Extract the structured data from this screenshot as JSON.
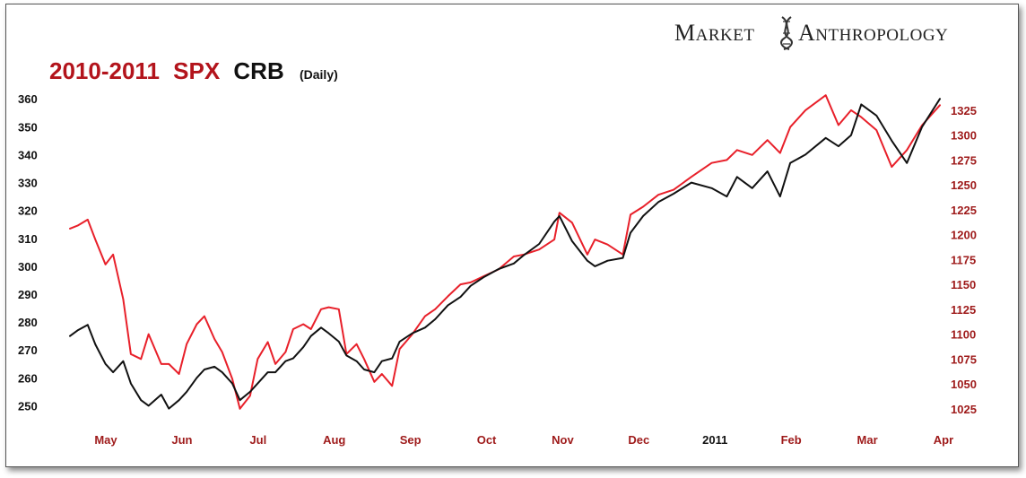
{
  "brand": {
    "word1_cap": "M",
    "word1_rest": "ARKET",
    "word2_cap": "A",
    "word2_rest": "NTHROPOLOGY"
  },
  "title": {
    "years": "2010-2011",
    "spx": "SPX",
    "crb": "CRB",
    "period": "(Daily)"
  },
  "colors": {
    "spx": "#e8202a",
    "crb": "#111111",
    "title_red": "#b3141c",
    "axis_red": "#9e1a1a"
  },
  "chart_data": {
    "type": "line",
    "title": "2010-2011 SPX CRB (Daily)",
    "x_labels": [
      "May",
      "Jun",
      "Jul",
      "Aug",
      "Sep",
      "Oct",
      "Nov",
      "Dec",
      "2011",
      "Feb",
      "Mar",
      "Apr"
    ],
    "x_range": [
      "2010-04-26",
      "2011-04-04"
    ],
    "y_left": {
      "series": "CRB",
      "range": [
        245,
        362
      ],
      "ticks": [
        250,
        260,
        270,
        280,
        290,
        300,
        310,
        320,
        330,
        340,
        350,
        360
      ]
    },
    "y_right": {
      "series": "SPX",
      "range": [
        1014,
        1342
      ],
      "ticks": [
        1025,
        1050,
        1075,
        1100,
        1125,
        1150,
        1175,
        1200,
        1225,
        1250,
        1275,
        1300,
        1325
      ]
    },
    "grid": false,
    "series": [
      {
        "name": "SPX",
        "axis": "right",
        "color": "#e8202a",
        "x": [
          "2010-04-26",
          "2010-04-29",
          "2010-05-03",
          "2010-05-06",
          "2010-05-10",
          "2010-05-13",
          "2010-05-17",
          "2010-05-20",
          "2010-05-24",
          "2010-05-27",
          "2010-06-01",
          "2010-06-04",
          "2010-06-08",
          "2010-06-11",
          "2010-06-15",
          "2010-06-18",
          "2010-06-22",
          "2010-06-25",
          "2010-06-29",
          "2010-07-02",
          "2010-07-06",
          "2010-07-09",
          "2010-07-13",
          "2010-07-16",
          "2010-07-20",
          "2010-07-23",
          "2010-07-27",
          "2010-07-30",
          "2010-08-03",
          "2010-08-06",
          "2010-08-10",
          "2010-08-13",
          "2010-08-17",
          "2010-08-20",
          "2010-08-24",
          "2010-08-27",
          "2010-08-31",
          "2010-09-03",
          "2010-09-08",
          "2010-09-13",
          "2010-09-17",
          "2010-09-22",
          "2010-09-27",
          "2010-10-01",
          "2010-10-06",
          "2010-10-12",
          "2010-10-18",
          "2010-10-22",
          "2010-10-28",
          "2010-11-03",
          "2010-11-05",
          "2010-11-10",
          "2010-11-16",
          "2010-11-19",
          "2010-11-24",
          "2010-11-30",
          "2010-12-03",
          "2010-12-08",
          "2010-12-14",
          "2010-12-20",
          "2010-12-27",
          "2011-01-04",
          "2011-01-10",
          "2011-01-14",
          "2011-01-20",
          "2011-01-26",
          "2011-01-31",
          "2011-02-04",
          "2011-02-10",
          "2011-02-18",
          "2011-02-23",
          "2011-02-28",
          "2011-03-04",
          "2011-03-10",
          "2011-03-16",
          "2011-03-22",
          "2011-03-28",
          "2011-04-04"
        ],
        "values": [
          1206,
          1209,
          1215,
          1195,
          1170,
          1180,
          1135,
          1080,
          1075,
          1100,
          1070,
          1070,
          1060,
          1090,
          1110,
          1118,
          1095,
          1082,
          1055,
          1025,
          1038,
          1075,
          1092,
          1070,
          1082,
          1105,
          1110,
          1105,
          1125,
          1127,
          1125,
          1080,
          1090,
          1075,
          1052,
          1060,
          1048,
          1085,
          1100,
          1118,
          1125,
          1138,
          1150,
          1152,
          1158,
          1165,
          1178,
          1180,
          1185,
          1195,
          1222,
          1212,
          1180,
          1195,
          1190,
          1180,
          1220,
          1228,
          1240,
          1245,
          1258,
          1272,
          1275,
          1285,
          1280,
          1295,
          1282,
          1308,
          1325,
          1340,
          1310,
          1325,
          1318,
          1305,
          1268,
          1285,
          1310,
          1330
        ]
      },
      {
        "name": "CRB",
        "axis": "left",
        "color": "#111111",
        "x": [
          "2010-04-26",
          "2010-04-29",
          "2010-05-03",
          "2010-05-06",
          "2010-05-10",
          "2010-05-13",
          "2010-05-17",
          "2010-05-20",
          "2010-05-24",
          "2010-05-27",
          "2010-06-01",
          "2010-06-04",
          "2010-06-08",
          "2010-06-11",
          "2010-06-15",
          "2010-06-18",
          "2010-06-22",
          "2010-06-25",
          "2010-06-29",
          "2010-07-02",
          "2010-07-06",
          "2010-07-09",
          "2010-07-13",
          "2010-07-16",
          "2010-07-20",
          "2010-07-23",
          "2010-07-27",
          "2010-07-30",
          "2010-08-03",
          "2010-08-06",
          "2010-08-10",
          "2010-08-13",
          "2010-08-17",
          "2010-08-20",
          "2010-08-24",
          "2010-08-27",
          "2010-08-31",
          "2010-09-03",
          "2010-09-08",
          "2010-09-13",
          "2010-09-17",
          "2010-09-22",
          "2010-09-27",
          "2010-10-01",
          "2010-10-06",
          "2010-10-12",
          "2010-10-18",
          "2010-10-22",
          "2010-10-28",
          "2010-11-03",
          "2010-11-05",
          "2010-11-10",
          "2010-11-16",
          "2010-11-19",
          "2010-11-24",
          "2010-11-30",
          "2010-12-03",
          "2010-12-08",
          "2010-12-14",
          "2010-12-20",
          "2010-12-27",
          "2011-01-04",
          "2011-01-10",
          "2011-01-14",
          "2011-01-20",
          "2011-01-26",
          "2011-01-31",
          "2011-02-04",
          "2011-02-10",
          "2011-02-18",
          "2011-02-23",
          "2011-02-28",
          "2011-03-04",
          "2011-03-10",
          "2011-03-16",
          "2011-03-22",
          "2011-03-28",
          "2011-04-04"
        ],
        "values": [
          275,
          277,
          279,
          272,
          265,
          262,
          266,
          258,
          252,
          250,
          254,
          249,
          252,
          255,
          260,
          263,
          264,
          262,
          258,
          252,
          255,
          258,
          262,
          262,
          266,
          267,
          271,
          275,
          278,
          276,
          273,
          268,
          266,
          263,
          262,
          266,
          267,
          273,
          276,
          278,
          281,
          286,
          289,
          293,
          296,
          299,
          301,
          304,
          308,
          316,
          318,
          309,
          302,
          300,
          302,
          303,
          312,
          318,
          323,
          326,
          330,
          328,
          325,
          332,
          328,
          334,
          325,
          337,
          340,
          346,
          343,
          347,
          358,
          354,
          345,
          337,
          350,
          360
        ]
      }
    ]
  }
}
